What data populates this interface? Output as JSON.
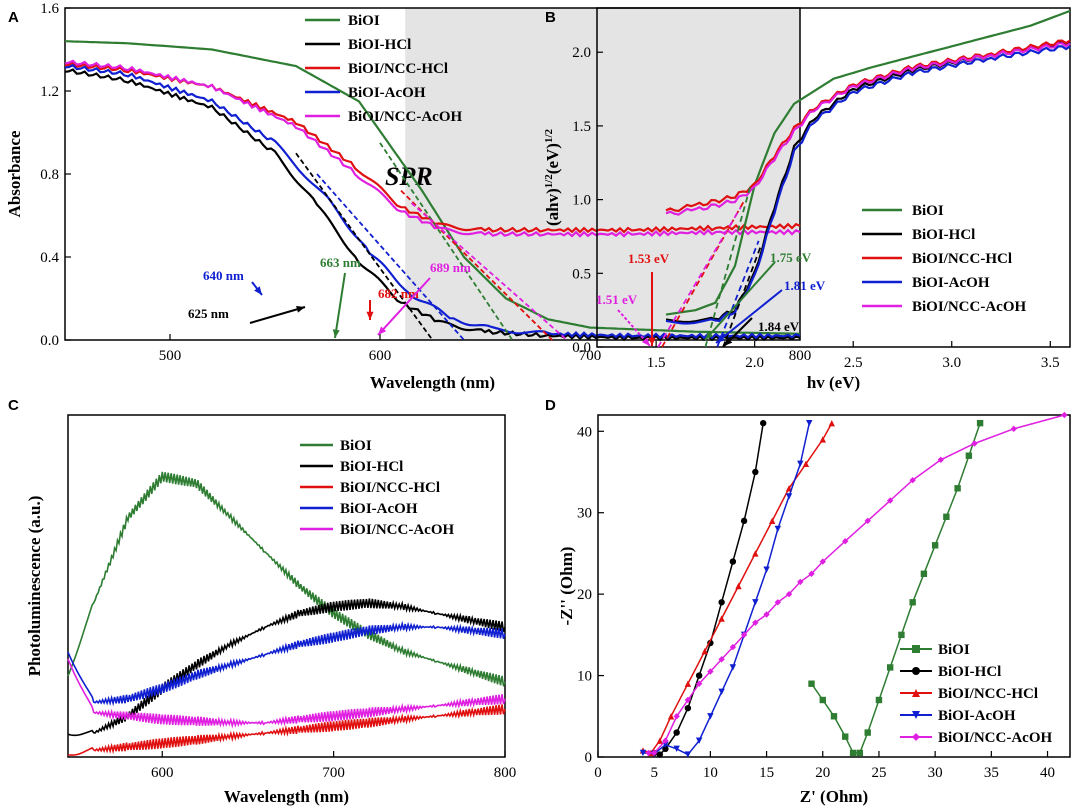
{
  "chart_data": [
    {
      "panel": "A",
      "type": "line",
      "xlabel": "Wavelength (nm)",
      "ylabel": "Absorbance",
      "xlim": [
        450,
        800
      ],
      "ylim": [
        0.0,
        1.6
      ],
      "xticks": [
        500,
        600,
        700,
        800
      ],
      "yticks": [
        0.0,
        0.4,
        0.8,
        1.2,
        1.6
      ],
      "shaded_region": {
        "from": 612,
        "to": 800,
        "label": "SPR"
      },
      "series": [
        {
          "name": "BiOI",
          "color": "#2e7d32",
          "x": [
            450,
            480,
            520,
            560,
            590,
            620,
            640,
            660,
            680,
            700,
            750,
            800
          ],
          "y": [
            1.44,
            1.43,
            1.4,
            1.32,
            1.15,
            0.72,
            0.4,
            0.2,
            0.1,
            0.06,
            0.04,
            0.03
          ]
        },
        {
          "name": "BiOI-HCl",
          "color": "#000000",
          "x": [
            450,
            480,
            520,
            550,
            570,
            590,
            610,
            630,
            650,
            680,
            720,
            800
          ],
          "y": [
            1.3,
            1.25,
            1.12,
            0.9,
            0.65,
            0.38,
            0.18,
            0.08,
            0.04,
            0.02,
            0.01,
            0.01
          ]
        },
        {
          "name": "BiOI/NCC-HCl",
          "color": "#e01010",
          "x": [
            450,
            480,
            520,
            560,
            590,
            610,
            630,
            650,
            680,
            720,
            760,
            800
          ],
          "y": [
            1.33,
            1.3,
            1.22,
            1.05,
            0.82,
            0.64,
            0.55,
            0.53,
            0.53,
            0.53,
            0.54,
            0.55
          ]
        },
        {
          "name": "BiOI-AcOH",
          "color": "#1020d0",
          "x": [
            450,
            480,
            520,
            550,
            575,
            595,
            615,
            635,
            655,
            680,
            720,
            800
          ],
          "y": [
            1.32,
            1.28,
            1.15,
            0.95,
            0.68,
            0.42,
            0.22,
            0.1,
            0.05,
            0.03,
            0.02,
            0.02
          ]
        },
        {
          "name": "BiOI/NCC-AcOH",
          "color": "#e020e0",
          "x": [
            450,
            480,
            520,
            560,
            590,
            610,
            630,
            650,
            680,
            720,
            760,
            800
          ],
          "y": [
            1.34,
            1.31,
            1.22,
            1.03,
            0.79,
            0.62,
            0.53,
            0.51,
            0.51,
            0.51,
            0.52,
            0.52
          ]
        }
      ],
      "annotations": [
        {
          "text": "625 nm",
          "color": "#000000",
          "x": 625
        },
        {
          "text": "640 nm",
          "color": "#1020d0",
          "x": 640
        },
        {
          "text": "663 nm",
          "color": "#2e7d32",
          "x": 663
        },
        {
          "text": "682 nm",
          "color": "#e01010",
          "x": 682
        },
        {
          "text": "689 nm",
          "color": "#e020e0",
          "x": 689
        }
      ]
    },
    {
      "panel": "B",
      "type": "line",
      "xlabel": "hv (eV)",
      "ylabel_parts": [
        "(ahv)",
        "1/2",
        "(eV)",
        "1/2"
      ],
      "xlim": [
        1.2,
        3.6
      ],
      "ylim": [
        0.0,
        2.3
      ],
      "xticks": [
        1.5,
        2.0,
        2.5,
        3.0,
        3.5
      ],
      "yticks": [
        0.0,
        0.5,
        1.0,
        1.5,
        2.0
      ],
      "series": [
        {
          "name": "BiOI",
          "color": "#2e7d32",
          "x": [
            1.55,
            1.7,
            1.8,
            1.9,
            2.0,
            2.1,
            2.2,
            2.4,
            2.6,
            3.0,
            3.4,
            3.6
          ],
          "y": [
            0.22,
            0.25,
            0.3,
            0.55,
            1.1,
            1.45,
            1.65,
            1.82,
            1.9,
            2.04,
            2.18,
            2.28
          ]
        },
        {
          "name": "BiOI-HCl",
          "color": "#000000",
          "x": [
            1.55,
            1.8,
            1.9,
            2.0,
            2.1,
            2.2,
            2.3,
            2.5,
            2.8,
            3.2,
            3.6
          ],
          "y": [
            0.18,
            0.19,
            0.25,
            0.5,
            0.95,
            1.35,
            1.55,
            1.75,
            1.88,
            1.98,
            2.07
          ]
        },
        {
          "name": "BiOI/NCC-HCl",
          "color": "#e01010",
          "x": [
            1.55,
            1.7,
            1.9,
            2.0,
            2.1,
            2.2,
            2.3,
            2.5,
            2.8,
            3.2,
            3.6
          ],
          "y": [
            0.92,
            0.96,
            1.02,
            1.1,
            1.3,
            1.48,
            1.62,
            1.78,
            1.9,
            1.99,
            2.08
          ]
        },
        {
          "name": "BiOI-AcOH",
          "color": "#1020d0",
          "x": [
            1.55,
            1.8,
            1.9,
            2.0,
            2.1,
            2.2,
            2.3,
            2.5,
            2.8,
            3.2,
            3.6
          ],
          "y": [
            0.17,
            0.18,
            0.24,
            0.48,
            0.92,
            1.32,
            1.53,
            1.73,
            1.86,
            1.96,
            2.04
          ]
        },
        {
          "name": "BiOI/NCC-AcOH",
          "color": "#e020e0",
          "x": [
            1.55,
            1.7,
            1.9,
            2.0,
            2.1,
            2.2,
            2.3,
            2.5,
            2.8,
            3.2,
            3.6
          ],
          "y": [
            0.9,
            0.93,
            0.99,
            1.08,
            1.28,
            1.46,
            1.61,
            1.77,
            1.89,
            1.98,
            2.06
          ]
        }
      ],
      "annotations": [
        {
          "text": "1.53 eV",
          "color": "#e01010"
        },
        {
          "text": "1.51 eV",
          "color": "#e020e0"
        },
        {
          "text": "1.75 eV",
          "color": "#2e7d32"
        },
        {
          "text": "1.81 eV",
          "color": "#1020d0"
        },
        {
          "text": "1.84 eV",
          "color": "#000000"
        }
      ]
    },
    {
      "panel": "C",
      "type": "line",
      "xlabel": "Wavelength (nm)",
      "ylabel": "Photoluminescence (a.u.)",
      "xlim": [
        545,
        800
      ],
      "xticks": [
        600,
        700,
        800
      ],
      "series": [
        {
          "name": "BiOI",
          "color": "#2e7d32",
          "x": [
            545,
            560,
            580,
            600,
            620,
            640,
            660,
            680,
            700,
            720,
            740,
            760,
            780,
            800
          ],
          "y": [
            0.25,
            0.45,
            0.7,
            0.82,
            0.8,
            0.7,
            0.6,
            0.5,
            0.42,
            0.36,
            0.31,
            0.28,
            0.25,
            0.22
          ]
        },
        {
          "name": "BiOI-HCl",
          "color": "#000000",
          "x": [
            545,
            560,
            580,
            600,
            620,
            640,
            660,
            680,
            700,
            720,
            740,
            760,
            780,
            800
          ],
          "y": [
            0.08,
            0.07,
            0.12,
            0.2,
            0.27,
            0.33,
            0.38,
            0.42,
            0.44,
            0.45,
            0.44,
            0.42,
            0.4,
            0.38
          ]
        },
        {
          "name": "BiOI/NCC-HCl",
          "color": "#e01010",
          "x": [
            545,
            560,
            580,
            600,
            620,
            640,
            660,
            680,
            700,
            720,
            740,
            760,
            780,
            800
          ],
          "y": [
            0.02,
            0.02,
            0.03,
            0.04,
            0.05,
            0.06,
            0.07,
            0.08,
            0.09,
            0.1,
            0.11,
            0.12,
            0.13,
            0.14
          ]
        },
        {
          "name": "BiOI-AcOH",
          "color": "#1020d0",
          "x": [
            545,
            560,
            580,
            600,
            620,
            640,
            660,
            680,
            700,
            720,
            740,
            760,
            780,
            800
          ],
          "y": [
            0.32,
            0.16,
            0.17,
            0.2,
            0.24,
            0.27,
            0.3,
            0.33,
            0.35,
            0.37,
            0.38,
            0.38,
            0.37,
            0.36
          ]
        },
        {
          "name": "BiOI/NCC-AcOH",
          "color": "#e020e0",
          "x": [
            545,
            560,
            580,
            600,
            620,
            640,
            660,
            680,
            700,
            720,
            740,
            760,
            780,
            800
          ],
          "y": [
            0.3,
            0.13,
            0.12,
            0.11,
            0.105,
            0.1,
            0.1,
            0.11,
            0.12,
            0.13,
            0.14,
            0.15,
            0.16,
            0.17
          ]
        }
      ]
    },
    {
      "panel": "D",
      "type": "scatter",
      "xlabel": "Z' (Ohm)",
      "ylabel": "-Z'' (Ohm)",
      "xlim": [
        0,
        42
      ],
      "ylim": [
        0,
        42
      ],
      "xticks": [
        0,
        5,
        10,
        15,
        20,
        25,
        30,
        35,
        40
      ],
      "yticks": [
        0,
        10,
        20,
        30,
        40
      ],
      "series": [
        {
          "name": "BiOI",
          "color": "#2e7d32",
          "marker": "square",
          "x": [
            19,
            20,
            21,
            22,
            22.7,
            23.3,
            24,
            25,
            26,
            27,
            28,
            29,
            30,
            31,
            32,
            33,
            34
          ],
          "y": [
            9,
            7,
            5,
            2.5,
            0.5,
            0.5,
            3,
            7,
            11,
            15,
            19,
            22.5,
            26,
            29.5,
            33,
            37,
            41
          ]
        },
        {
          "name": "BiOI-HCl",
          "color": "#000000",
          "marker": "circle",
          "x": [
            5,
            5.5,
            6,
            7,
            8,
            9,
            10,
            11,
            12,
            13,
            14,
            14.7
          ],
          "y": [
            0.5,
            0.3,
            1,
            3,
            6,
            10,
            14,
            19,
            24,
            29,
            35,
            41
          ]
        },
        {
          "name": "BiOI/NCC-HCl",
          "color": "#e01010",
          "marker": "triangle-up",
          "x": [
            4,
            4.7,
            5.5,
            6.5,
            8,
            9.5,
            11,
            12.5,
            14,
            15.5,
            17,
            18.5,
            20,
            20.8
          ],
          "y": [
            0.8,
            0.5,
            2,
            5,
            9,
            13,
            17,
            21,
            25,
            29,
            33,
            36,
            39,
            41
          ]
        },
        {
          "name": "BiOI-AcOH",
          "color": "#1020d0",
          "marker": "triangle-down",
          "x": [
            4,
            5,
            6,
            7,
            8,
            9,
            10,
            11,
            12,
            13,
            14,
            15,
            16,
            17,
            18,
            18.8
          ],
          "y": [
            0.5,
            0.4,
            1.5,
            1,
            0.3,
            2,
            5,
            8,
            11,
            15,
            19,
            23,
            28,
            32,
            36,
            41
          ]
        },
        {
          "name": "BiOI/NCC-AcOH",
          "color": "#e020e0",
          "marker": "diamond",
          "x": [
            4.5,
            5,
            6,
            7,
            8,
            9,
            10,
            11,
            12,
            13,
            14,
            15,
            16,
            17,
            18,
            19,
            20,
            22,
            24,
            26,
            28,
            30.5,
            33.5,
            37,
            41.5
          ],
          "y": [
            0.5,
            0.5,
            2,
            5,
            7,
            9,
            10.5,
            12,
            13.5,
            15,
            16.5,
            17.5,
            19,
            20,
            21.5,
            22.5,
            24,
            26.5,
            29,
            31.5,
            34,
            36.5,
            38.5,
            40.3,
            42
          ]
        }
      ]
    }
  ]
}
